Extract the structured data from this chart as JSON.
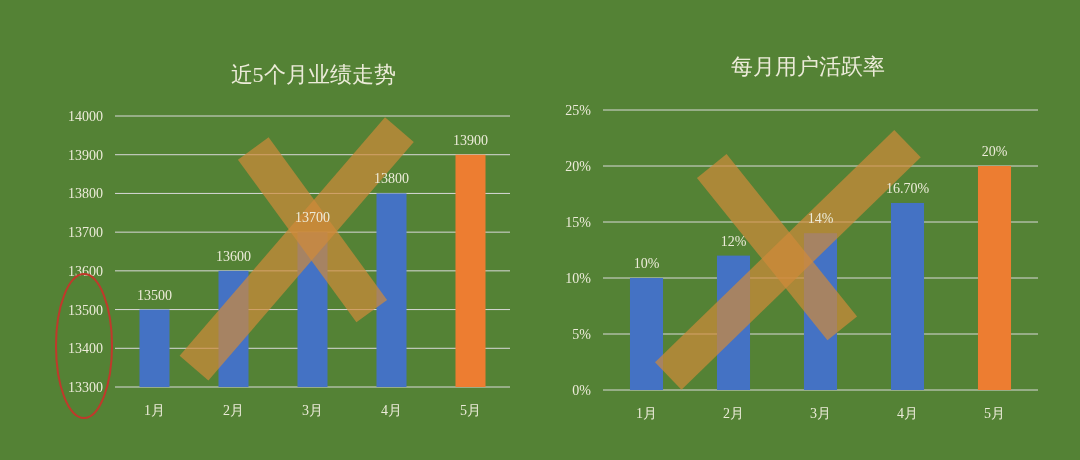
{
  "chart_data": [
    {
      "type": "bar",
      "title": "近5个月业绩走势",
      "categories": [
        "1月",
        "2月",
        "3月",
        "4月",
        "5月"
      ],
      "values": [
        13500,
        13600,
        13700,
        13800,
        13900
      ],
      "colors": [
        "#4472c4",
        "#4472c4",
        "#4472c4",
        "#4472c4",
        "#ed7d31"
      ],
      "ylim": [
        13300,
        14000
      ],
      "yticks": [
        13300,
        13400,
        13500,
        13600,
        13700,
        13800,
        13900,
        14000
      ],
      "grid": "y",
      "data_labels": true
    },
    {
      "type": "bar",
      "title": "每月用户活跃率",
      "categories": [
        "1月",
        "2月",
        "3月",
        "4月",
        "5月"
      ],
      "values": [
        10,
        12,
        14,
        16.7,
        20
      ],
      "colors": [
        "#4472c4",
        "#4472c4",
        "#4472c4",
        "#4472c4",
        "#ed7d31"
      ],
      "value_labels": [
        "10%",
        "12%",
        "14%",
        "16.70%",
        "20%"
      ],
      "ylim": [
        0,
        25
      ],
      "yticks": [
        {
          "value": 0,
          "label": "0%"
        },
        {
          "value": 5,
          "label": "5%"
        },
        {
          "value": 10,
          "label": "10%"
        },
        {
          "value": 15,
          "label": "15%"
        },
        {
          "value": 20,
          "label": "20%"
        },
        {
          "value": 25,
          "label": "25%"
        }
      ],
      "grid": "y"
    }
  ]
}
